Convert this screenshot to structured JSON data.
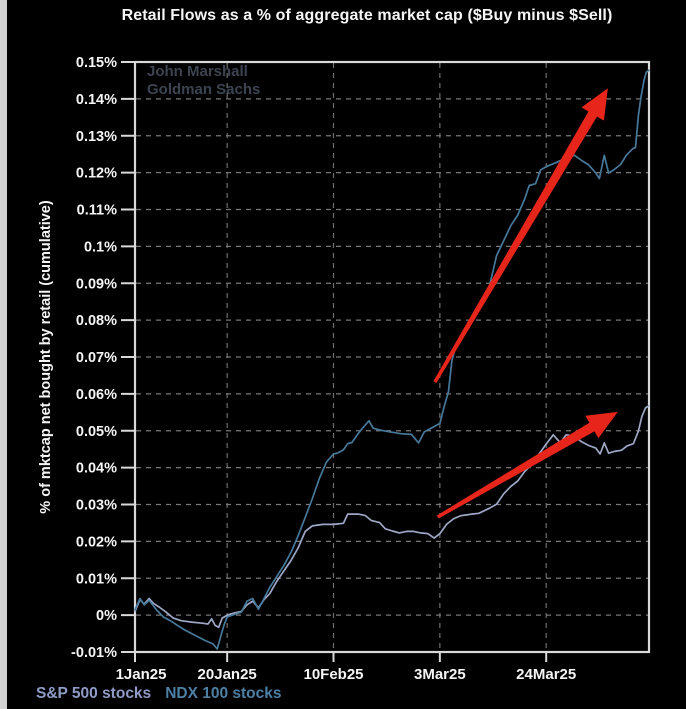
{
  "title": "Retail Flows as a % of aggregate market cap ($Buy minus $Sell)",
  "watermark": {
    "line1": "John Marshall",
    "line2": "Goldman Sachs",
    "color": "#3b4450"
  },
  "legend": {
    "items": [
      {
        "label": "S&P 500 stocks",
        "color": "#8f9cc6"
      },
      {
        "label": "NDX 100 stocks",
        "color": "#4e80a4"
      }
    ]
  },
  "chart_data": {
    "type": "line",
    "title": "Retail Flows as a % of aggregate market cap ($Buy minus $Sell)",
    "xlabel": "",
    "ylabel": "% of mktcap net bought by retail (cumulative)",
    "ylim": [
      -0.01,
      0.15
    ],
    "y_tick_values": [
      0.15,
      0.14,
      0.13,
      0.12,
      0.11,
      0.1,
      0.09,
      0.08,
      0.07,
      0.06,
      0.05,
      0.04,
      0.03,
      0.02,
      0.01,
      0,
      -0.01
    ],
    "y_tick_labels": [
      "0.15%",
      "0.14%",
      "0.13%",
      "0.12%",
      "0.11%",
      "0.1%",
      "0.09%",
      "0.08%",
      "0.07%",
      "0.06%",
      "0.05%",
      "0.04%",
      "0.03%",
      "0.02%",
      "0.01%",
      "0%",
      "-0.01%"
    ],
    "x_tick_labels": [
      "1Jan25",
      "20Jan25",
      "10Feb25",
      "3Mar25",
      "24Mar25"
    ],
    "x_tick_days": [
      0,
      13,
      28,
      43,
      58
    ],
    "x_range_days": [
      0,
      72.5
    ],
    "grid": "dashed",
    "legend_position": "bottom-left",
    "background": "#000000",
    "axis_color": "#d9d9d9",
    "grid_color": "#868686",
    "tick_label_color": "#f5f5f5",
    "series": [
      {
        "name": "S&P 500 stocks",
        "color": "#9ea8c6",
        "points": [
          [
            0,
            0.001
          ],
          [
            0.7,
            0.0042
          ],
          [
            1.3,
            0.003
          ],
          [
            2,
            0.0045
          ],
          [
            2.6,
            0.0032
          ],
          [
            3.4,
            0.0022
          ],
          [
            4.4,
            0.0008
          ],
          [
            5.4,
            -0.0008
          ],
          [
            6.5,
            -0.0015
          ],
          [
            8,
            -0.0019
          ],
          [
            9.5,
            -0.0022
          ],
          [
            10.3,
            -0.0024
          ],
          [
            10.8,
            -0.001
          ],
          [
            11.3,
            -0.0028
          ],
          [
            11.8,
            -0.0033
          ],
          [
            12.3,
            -0.0008
          ],
          [
            13,
            0
          ],
          [
            14,
            0.0006
          ],
          [
            15,
            0.001
          ],
          [
            15.8,
            0.0028
          ],
          [
            16.6,
            0.0038
          ],
          [
            17.4,
            0.002
          ],
          [
            18.2,
            0.0042
          ],
          [
            19,
            0.0058
          ],
          [
            20,
            0.0092
          ],
          [
            21,
            0.012
          ],
          [
            22,
            0.0148
          ],
          [
            23,
            0.0182
          ],
          [
            24,
            0.0227
          ],
          [
            25,
            0.0242
          ],
          [
            26.5,
            0.0246
          ],
          [
            28,
            0.0246
          ],
          [
            29.4,
            0.0249
          ],
          [
            30,
            0.0274
          ],
          [
            31.5,
            0.0274
          ],
          [
            32.5,
            0.027
          ],
          [
            33.3,
            0.0257
          ],
          [
            34.5,
            0.0251
          ],
          [
            35.3,
            0.0234
          ],
          [
            36.3,
            0.0228
          ],
          [
            37.3,
            0.0223
          ],
          [
            38.3,
            0.0227
          ],
          [
            39.3,
            0.0227
          ],
          [
            40.3,
            0.0223
          ],
          [
            41.3,
            0.0221
          ],
          [
            42.2,
            0.0209
          ],
          [
            43,
            0.0221
          ],
          [
            44,
            0.0247
          ],
          [
            45,
            0.0262
          ],
          [
            46,
            0.027
          ],
          [
            47.5,
            0.0274
          ],
          [
            48.5,
            0.0276
          ],
          [
            50,
            0.029
          ],
          [
            51,
            0.0301
          ],
          [
            52,
            0.0329
          ],
          [
            53,
            0.0349
          ],
          [
            54,
            0.0364
          ],
          [
            55,
            0.039
          ],
          [
            56,
            0.041
          ],
          [
            57,
            0.0437
          ],
          [
            58,
            0.0464
          ],
          [
            59,
            0.0489
          ],
          [
            60,
            0.0467
          ],
          [
            60.8,
            0.0489
          ],
          [
            62,
            0.0485
          ],
          [
            63,
            0.047
          ],
          [
            64,
            0.046
          ],
          [
            65,
            0.0453
          ],
          [
            65.6,
            0.0437
          ],
          [
            66.2,
            0.0467
          ],
          [
            66.8,
            0.0439
          ],
          [
            67.6,
            0.0444
          ],
          [
            68.6,
            0.0447
          ],
          [
            69.4,
            0.0459
          ],
          [
            70.3,
            0.0465
          ],
          [
            71,
            0.0499
          ],
          [
            71.5,
            0.0539
          ],
          [
            72,
            0.0562
          ],
          [
            72.5,
            0.0568
          ]
        ]
      },
      {
        "name": "NDX 100 stocks",
        "color": "#47799a",
        "points": [
          [
            0,
            0.0015
          ],
          [
            0.7,
            0.0045
          ],
          [
            1.3,
            0.0028
          ],
          [
            2,
            0.004
          ],
          [
            3,
            0.0015
          ],
          [
            4,
            -0.0005
          ],
          [
            5,
            -0.0015
          ],
          [
            6,
            -0.0028
          ],
          [
            7,
            -0.004
          ],
          [
            8,
            -0.005
          ],
          [
            9,
            -0.006
          ],
          [
            10,
            -0.007
          ],
          [
            11,
            -0.0078
          ],
          [
            11.6,
            -0.0092
          ],
          [
            12.2,
            -0.005
          ],
          [
            12.6,
            -0.0025
          ],
          [
            13,
            -0.0005
          ],
          [
            14,
            0.0002
          ],
          [
            15,
            0.0008
          ],
          [
            15.8,
            0.0038
          ],
          [
            16.6,
            0.0045
          ],
          [
            17.4,
            0.0016
          ],
          [
            18.2,
            0.0045
          ],
          [
            19,
            0.0075
          ],
          [
            20,
            0.0105
          ],
          [
            21,
            0.0135
          ],
          [
            22,
            0.017
          ],
          [
            23,
            0.0215
          ],
          [
            24,
            0.0265
          ],
          [
            25,
            0.0315
          ],
          [
            26,
            0.037
          ],
          [
            27,
            0.0415
          ],
          [
            28,
            0.0437
          ],
          [
            28.6,
            0.044
          ],
          [
            29.4,
            0.0448
          ],
          [
            30,
            0.0465
          ],
          [
            30.6,
            0.0468
          ],
          [
            31.4,
            0.049
          ],
          [
            32,
            0.0505
          ],
          [
            33,
            0.0527
          ],
          [
            33.6,
            0.0507
          ],
          [
            34.5,
            0.0502
          ],
          [
            36,
            0.0497
          ],
          [
            37.5,
            0.0492
          ],
          [
            39,
            0.049
          ],
          [
            40,
            0.0467
          ],
          [
            40.8,
            0.0497
          ],
          [
            41.6,
            0.0505
          ],
          [
            43,
            0.052
          ],
          [
            43.6,
            0.0565
          ],
          [
            44.2,
            0.0605
          ],
          [
            44.7,
            0.069
          ],
          [
            45.2,
            0.0725
          ],
          [
            46,
            0.0757
          ],
          [
            47,
            0.079
          ],
          [
            48,
            0.0822
          ],
          [
            49,
            0.0848
          ],
          [
            50,
            0.0893
          ],
          [
            51,
            0.0975
          ],
          [
            52,
            0.1015
          ],
          [
            53,
            0.1056
          ],
          [
            54,
            0.1085
          ],
          [
            55,
            0.113
          ],
          [
            55.6,
            0.1165
          ],
          [
            56.5,
            0.117
          ],
          [
            57.2,
            0.1207
          ],
          [
            58,
            0.1216
          ],
          [
            59.5,
            0.1228
          ],
          [
            61,
            0.1242
          ],
          [
            62,
            0.1247
          ],
          [
            63,
            0.1233
          ],
          [
            64,
            0.1221
          ],
          [
            65,
            0.1199
          ],
          [
            65.5,
            0.1184
          ],
          [
            66.2,
            0.1247
          ],
          [
            66.8,
            0.1199
          ],
          [
            67.5,
            0.1207
          ],
          [
            68.5,
            0.1222
          ],
          [
            69.3,
            0.1247
          ],
          [
            70.2,
            0.1265
          ],
          [
            70.6,
            0.1268
          ],
          [
            71,
            0.1355
          ],
          [
            71.4,
            0.1408
          ],
          [
            71.8,
            0.145
          ],
          [
            72.1,
            0.1472
          ],
          [
            72.5,
            0.1478
          ]
        ]
      }
    ],
    "annotations": {
      "arrow_color": "#e8251a",
      "arrows": [
        {
          "from_day": 42.3,
          "from_value": 0.0632,
          "to_day": 66.7,
          "to_value": 0.1429
        },
        {
          "from_day": 42.7,
          "from_value": 0.0266,
          "to_day": 68.1,
          "to_value": 0.0551
        }
      ]
    }
  }
}
